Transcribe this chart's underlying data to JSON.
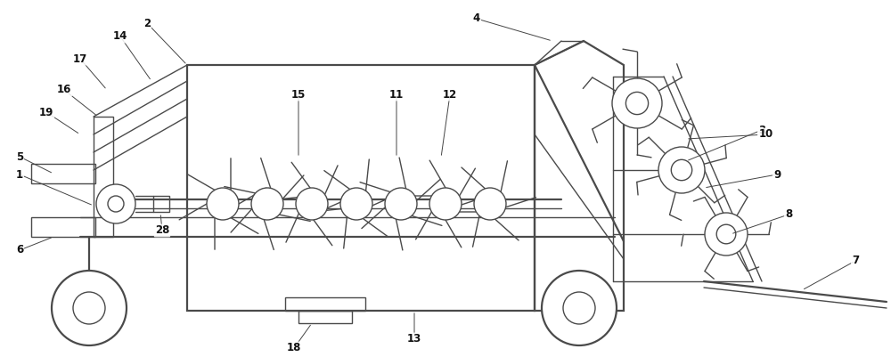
{
  "fig_bg": "#ffffff",
  "line_color": "#4a4a4a",
  "lw": 1.0,
  "lw2": 1.6,
  "label_fontsize": 8.5,
  "label_color": "#111111"
}
